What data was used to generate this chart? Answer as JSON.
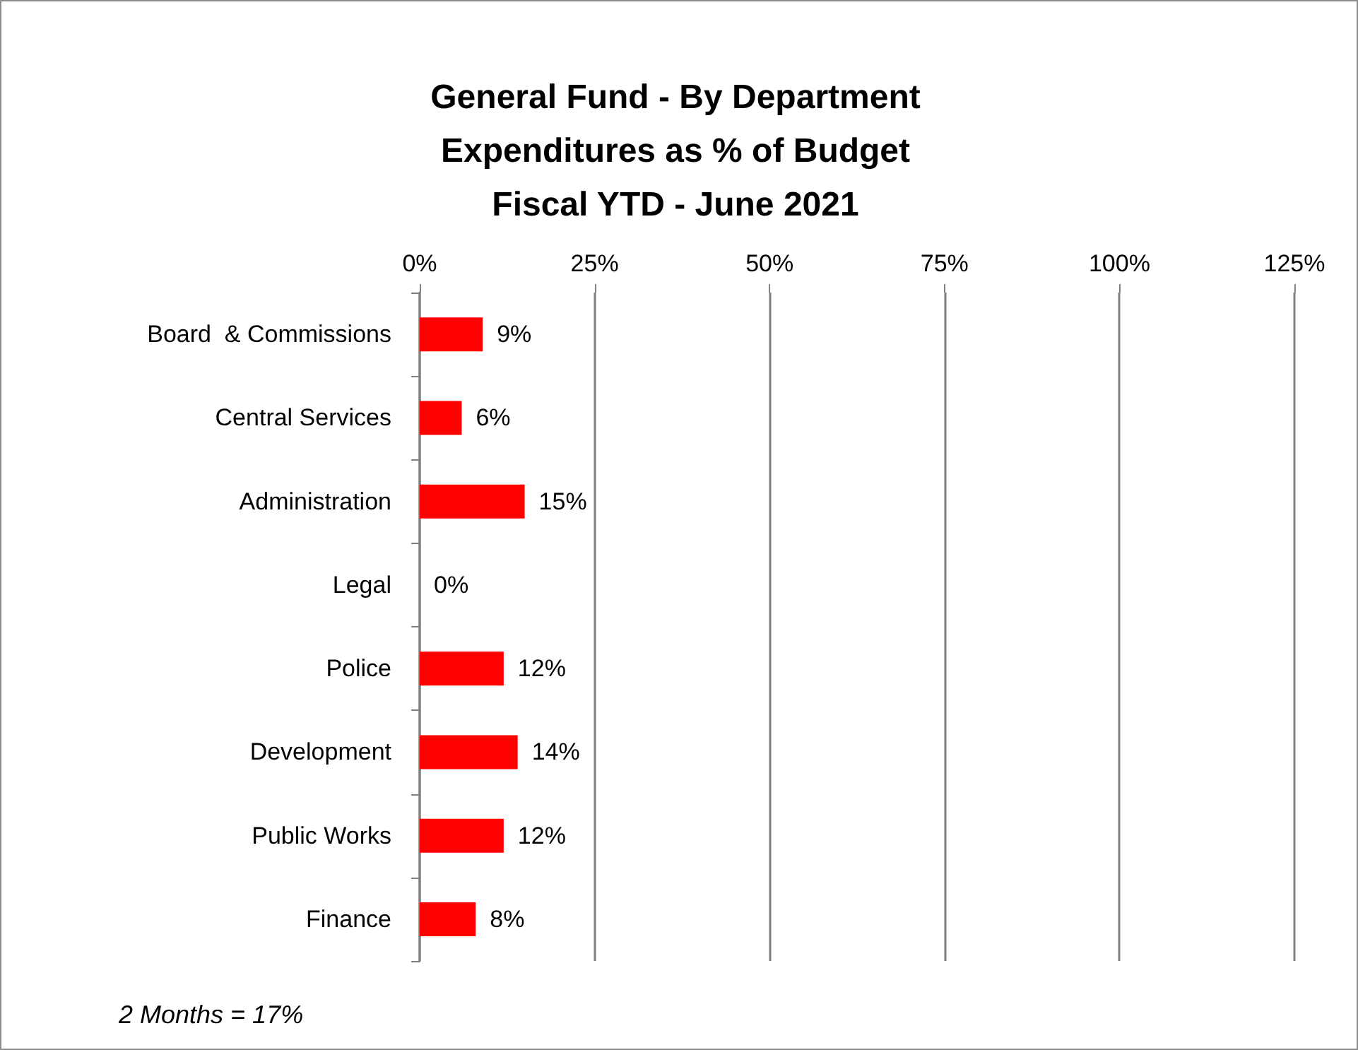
{
  "chart_data": {
    "type": "bar",
    "orientation": "horizontal",
    "title": "General Fund - By Department\nExpenditures as % of Budget\nFiscal YTD - June 2021",
    "categories": [
      "Board  & Commissions",
      "Central Services",
      "Administration",
      "Legal",
      "Police",
      "Development",
      "Public Works",
      "Finance"
    ],
    "values": [
      9,
      6,
      15,
      0,
      12,
      14,
      12,
      8
    ],
    "value_labels": [
      "9%",
      "6%",
      "15%",
      "0%",
      "12%",
      "14%",
      "12%",
      "8%"
    ],
    "color": "#ff0000",
    "xlim": [
      0,
      125
    ],
    "xticks": [
      {
        "value": 0,
        "label": "0%"
      },
      {
        "value": 25,
        "label": "25%"
      },
      {
        "value": 50,
        "label": "50%"
      },
      {
        "value": 75,
        "label": "75%"
      },
      {
        "value": 100,
        "label": "100%"
      },
      {
        "value": 125,
        "label": "125%"
      }
    ],
    "grid": "x",
    "annotations": [
      "2 Months = 17%"
    ]
  }
}
